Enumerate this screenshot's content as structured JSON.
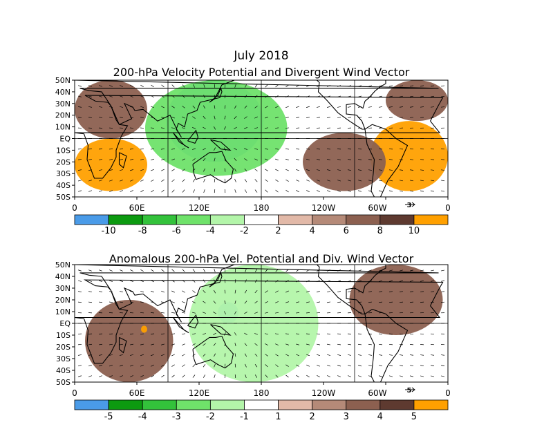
{
  "figure": {
    "title": "July 2018"
  },
  "chart_data": [
    {
      "type": "heatmap",
      "title": "200-hPa Velocity Potential and Divergent Wind Vector",
      "xlabel": "",
      "ylabel": "",
      "x_ticks": [
        "0",
        "60E",
        "120E",
        "180",
        "120W",
        "60W",
        "0"
      ],
      "y_ticks": [
        "50N",
        "40N",
        "30N",
        "20N",
        "10N",
        "EQ",
        "10S",
        "20S",
        "30S",
        "40S",
        "50S"
      ],
      "xlim": [
        0,
        360
      ],
      "ylim": [
        -50,
        50
      ],
      "vector_reference": "3",
      "colorbar": {
        "levels": [
          "-10",
          "-8",
          "-6",
          "-4",
          "-2",
          "2",
          "4",
          "6",
          "8",
          "10"
        ],
        "colors": [
          "#4a9be8",
          "#0c9a10",
          "#33c23b",
          "#6fe26a",
          "#b3f5a9",
          "#ffffff",
          "#e2b9a8",
          "#b58a78",
          "#8c6050",
          "#5e3a30",
          "#ffa000"
        ]
      },
      "regions": [
        {
          "name": "negative-core",
          "lon": [
            88,
            182
          ],
          "lat": [
            -20,
            50
          ],
          "value": -11
        },
        {
          "name": "negative-outer",
          "lon": [
            68,
            205
          ],
          "lat": [
            -32,
            50
          ],
          "value": -5
        },
        {
          "name": "positive-south-atlantic",
          "lon": [
            0,
            70
          ],
          "lat": [
            -45,
            0
          ],
          "value": 11
        },
        {
          "name": "positive-south-america",
          "lon": [
            285,
            360
          ],
          "lat": [
            -45,
            15
          ],
          "value": 11
        },
        {
          "name": "positive-north-africa",
          "lon": [
            0,
            70
          ],
          "lat": [
            0,
            50
          ],
          "value": 6
        },
        {
          "name": "positive-east-pacific",
          "lon": [
            220,
            300
          ],
          "lat": [
            -45,
            5
          ],
          "value": 6
        },
        {
          "name": "positive-north-atlantic",
          "lon": [
            300,
            360
          ],
          "lat": [
            15,
            50
          ],
          "value": 6
        }
      ]
    },
    {
      "type": "heatmap",
      "title": "Anomalous 200-hPa Vel. Potential and Div. Wind Vector",
      "xlabel": "",
      "ylabel": "",
      "x_ticks": [
        "0",
        "60E",
        "120E",
        "180",
        "120W",
        "60W",
        "0"
      ],
      "y_ticks": [
        "50N",
        "40N",
        "30N",
        "20N",
        "10N",
        "EQ",
        "10S",
        "20S",
        "30S",
        "40S",
        "50S"
      ],
      "xlim": [
        0,
        360
      ],
      "ylim": [
        -50,
        50
      ],
      "vector_reference": "5",
      "colorbar": {
        "levels": [
          "-5",
          "-4",
          "-3",
          "-2",
          "-1",
          "1",
          "2",
          "3",
          "4",
          "5"
        ],
        "colors": [
          "#4a9be8",
          "#0c9a10",
          "#33c23b",
          "#6fe26a",
          "#b3f5a9",
          "#ffffff",
          "#e2b9a8",
          "#b58a78",
          "#8c6050",
          "#5e3a30",
          "#ffa000"
        ]
      },
      "regions": [
        {
          "name": "negative-core",
          "lon": [
            138,
            158
          ],
          "lat": [
            0,
            18
          ],
          "value": -5.5
        },
        {
          "name": "negative-central-pacific",
          "lon": [
            110,
            235
          ],
          "lat": [
            -50,
            50
          ],
          "value": -2
        },
        {
          "name": "positive-africa",
          "lon": [
            10,
            95
          ],
          "lat": [
            -50,
            20
          ],
          "value": 3.5
        },
        {
          "name": "positive-africa-max",
          "lon": [
            64,
            70
          ],
          "lat": [
            -8,
            -2
          ],
          "value": 5.5
        },
        {
          "name": "positive-atlantic",
          "lon": [
            265,
            355
          ],
          "lat": [
            -10,
            50
          ],
          "value": 3.5
        }
      ]
    }
  ]
}
